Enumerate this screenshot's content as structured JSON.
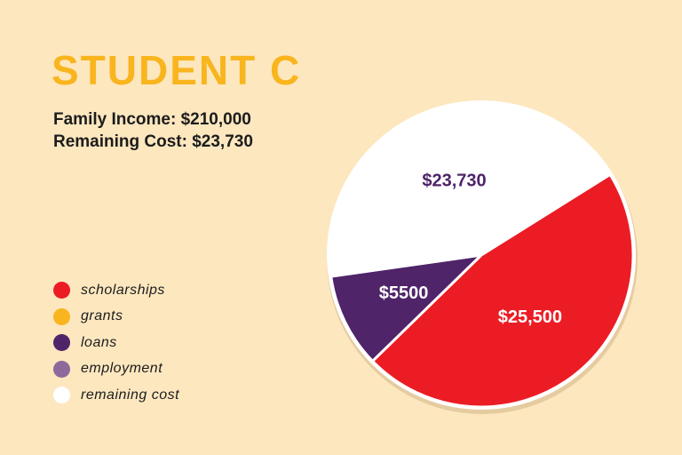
{
  "header": {
    "title": "STUDENT C",
    "family_income": "Family Income: $210,000",
    "remaining_cost": "Remaining Cost: $23,730"
  },
  "legend": [
    {
      "label": "scholarships",
      "color": "#ec1c24"
    },
    {
      "label": "grants",
      "color": "#f9b51e"
    },
    {
      "label": "loans",
      "color": "#4f2469"
    },
    {
      "label": "employment",
      "color": "#8c6a9c"
    },
    {
      "label": "remaining cost",
      "color": "#ffffff"
    }
  ],
  "chart_data": {
    "type": "pie",
    "title": "STUDENT C",
    "slices": [
      {
        "label": "scholarships",
        "value": 25500,
        "display": "$25,500",
        "color": "#ec1c24",
        "text_color": "#ffffff"
      },
      {
        "label": "loans",
        "value": 5500,
        "display": "$5500",
        "color": "#4f2469",
        "text_color": "#ffffff"
      },
      {
        "label": "remaining cost",
        "value": 23730,
        "display": "$23,730",
        "color": "#ffffff",
        "text_color": "#4f2469"
      }
    ],
    "legend_position": "left"
  }
}
